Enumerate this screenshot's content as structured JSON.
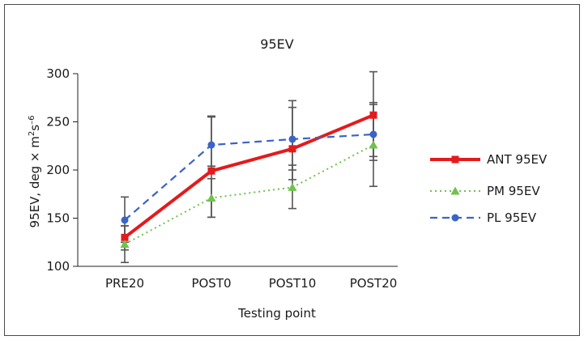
{
  "chart_data": {
    "type": "line",
    "title": "95EV",
    "xlabel": "Testing point",
    "ylabel_main": "95EV, deg × m",
    "ylabel_sup": "2",
    "ylabel_mid": "s",
    "ylabel_sup2": "–6",
    "categories": [
      "PRE20",
      "POST0",
      "POST10",
      "POST20"
    ],
    "ylim": [
      100,
      300
    ],
    "yticks": [
      100,
      150,
      200,
      250,
      300
    ],
    "yticklabels": [
      "100",
      "150",
      "200",
      "250",
      "300"
    ],
    "grid": false,
    "legend_position": "right",
    "series": [
      {
        "name": "ANT 95EV",
        "values": [
          130,
          199,
          222,
          257
        ],
        "err_low": [
          117,
          151,
          190,
          214
        ],
        "err_high": [
          142,
          255,
          265,
          302
        ],
        "color": "#e41a1c",
        "style": "solid",
        "marker": "square"
      },
      {
        "name": "PM 95EV",
        "values": [
          123,
          171,
          182,
          226
        ],
        "err_low": [
          104,
          151,
          160,
          183
        ],
        "err_high": [
          142,
          191,
          205,
          268
        ],
        "color": "#6fc24b",
        "style": "dotted",
        "marker": "triangle"
      },
      {
        "name": "PL 95EV",
        "values": [
          148,
          226,
          232,
          237
        ],
        "err_low": [
          125,
          204,
          200,
          210
        ],
        "err_high": [
          172,
          256,
          272,
          270
        ],
        "color": "#3b63c8",
        "style": "dashed",
        "marker": "circle"
      }
    ]
  }
}
